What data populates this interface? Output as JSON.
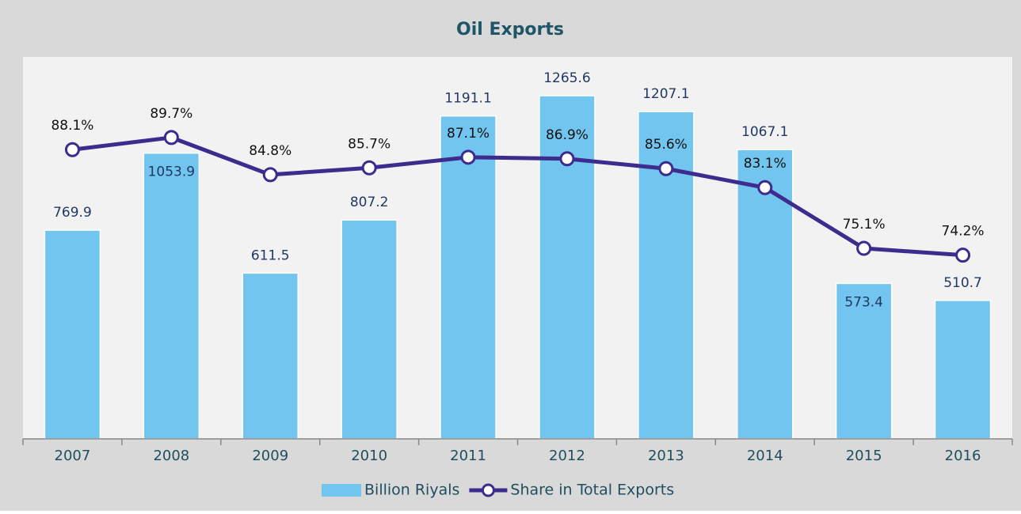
{
  "chart_data": {
    "type": "bar-line",
    "title": "Oil Exports",
    "categories": [
      "2007",
      "2008",
      "2009",
      "2010",
      "2011",
      "2012",
      "2013",
      "2014",
      "2015",
      "2016"
    ],
    "series": [
      {
        "name": "Billion Riyals",
        "type": "bar",
        "color": "#71c5ef",
        "values": [
          769.9,
          1053.9,
          611.5,
          807.2,
          1191.1,
          1265.6,
          1207.1,
          1067.1,
          573.4,
          510.7
        ]
      },
      {
        "name": "Share in Total Exports",
        "type": "line",
        "axis": "y2",
        "color": "#3d2b8e",
        "values": [
          88.1,
          89.7,
          84.8,
          85.7,
          87.1,
          86.9,
          85.6,
          83.1,
          75.1,
          74.2
        ],
        "value_labels": [
          "88.1%",
          "89.7%",
          "84.8%",
          "85.7%",
          "87.1%",
          "86.9%",
          "85.6%",
          "83.1%",
          "75.1%",
          "74.2%"
        ]
      }
    ],
    "ylim": [
      0,
      1400
    ],
    "y2lim": [
      50,
      100
    ],
    "legend": "bottom"
  }
}
